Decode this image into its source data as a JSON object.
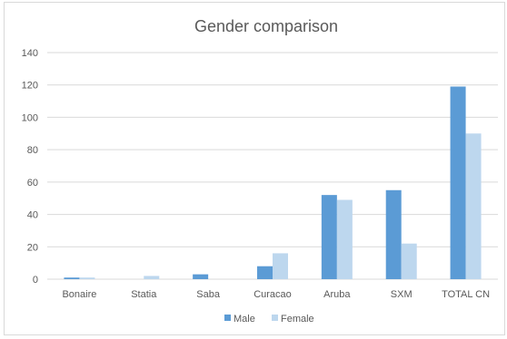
{
  "chart_data": {
    "type": "bar",
    "title": "Gender comparison",
    "xlabel": "",
    "ylabel": "",
    "categories": [
      "Bonaire",
      "Statia",
      "Saba",
      "Curacao",
      "Aruba",
      "SXM",
      "TOTAL CN"
    ],
    "series": [
      {
        "name": "Male",
        "color": "#5b9bd5",
        "values": [
          1,
          0,
          3,
          8,
          52,
          55,
          119
        ]
      },
      {
        "name": "Female",
        "color": "#bdd7ee",
        "values": [
          1,
          2,
          0,
          16,
          49,
          22,
          90
        ]
      }
    ],
    "ylim": [
      0,
      140
    ],
    "yticks": [
      0,
      20,
      40,
      60,
      80,
      100,
      120,
      140
    ],
    "grid": true,
    "legend": "bottom"
  }
}
